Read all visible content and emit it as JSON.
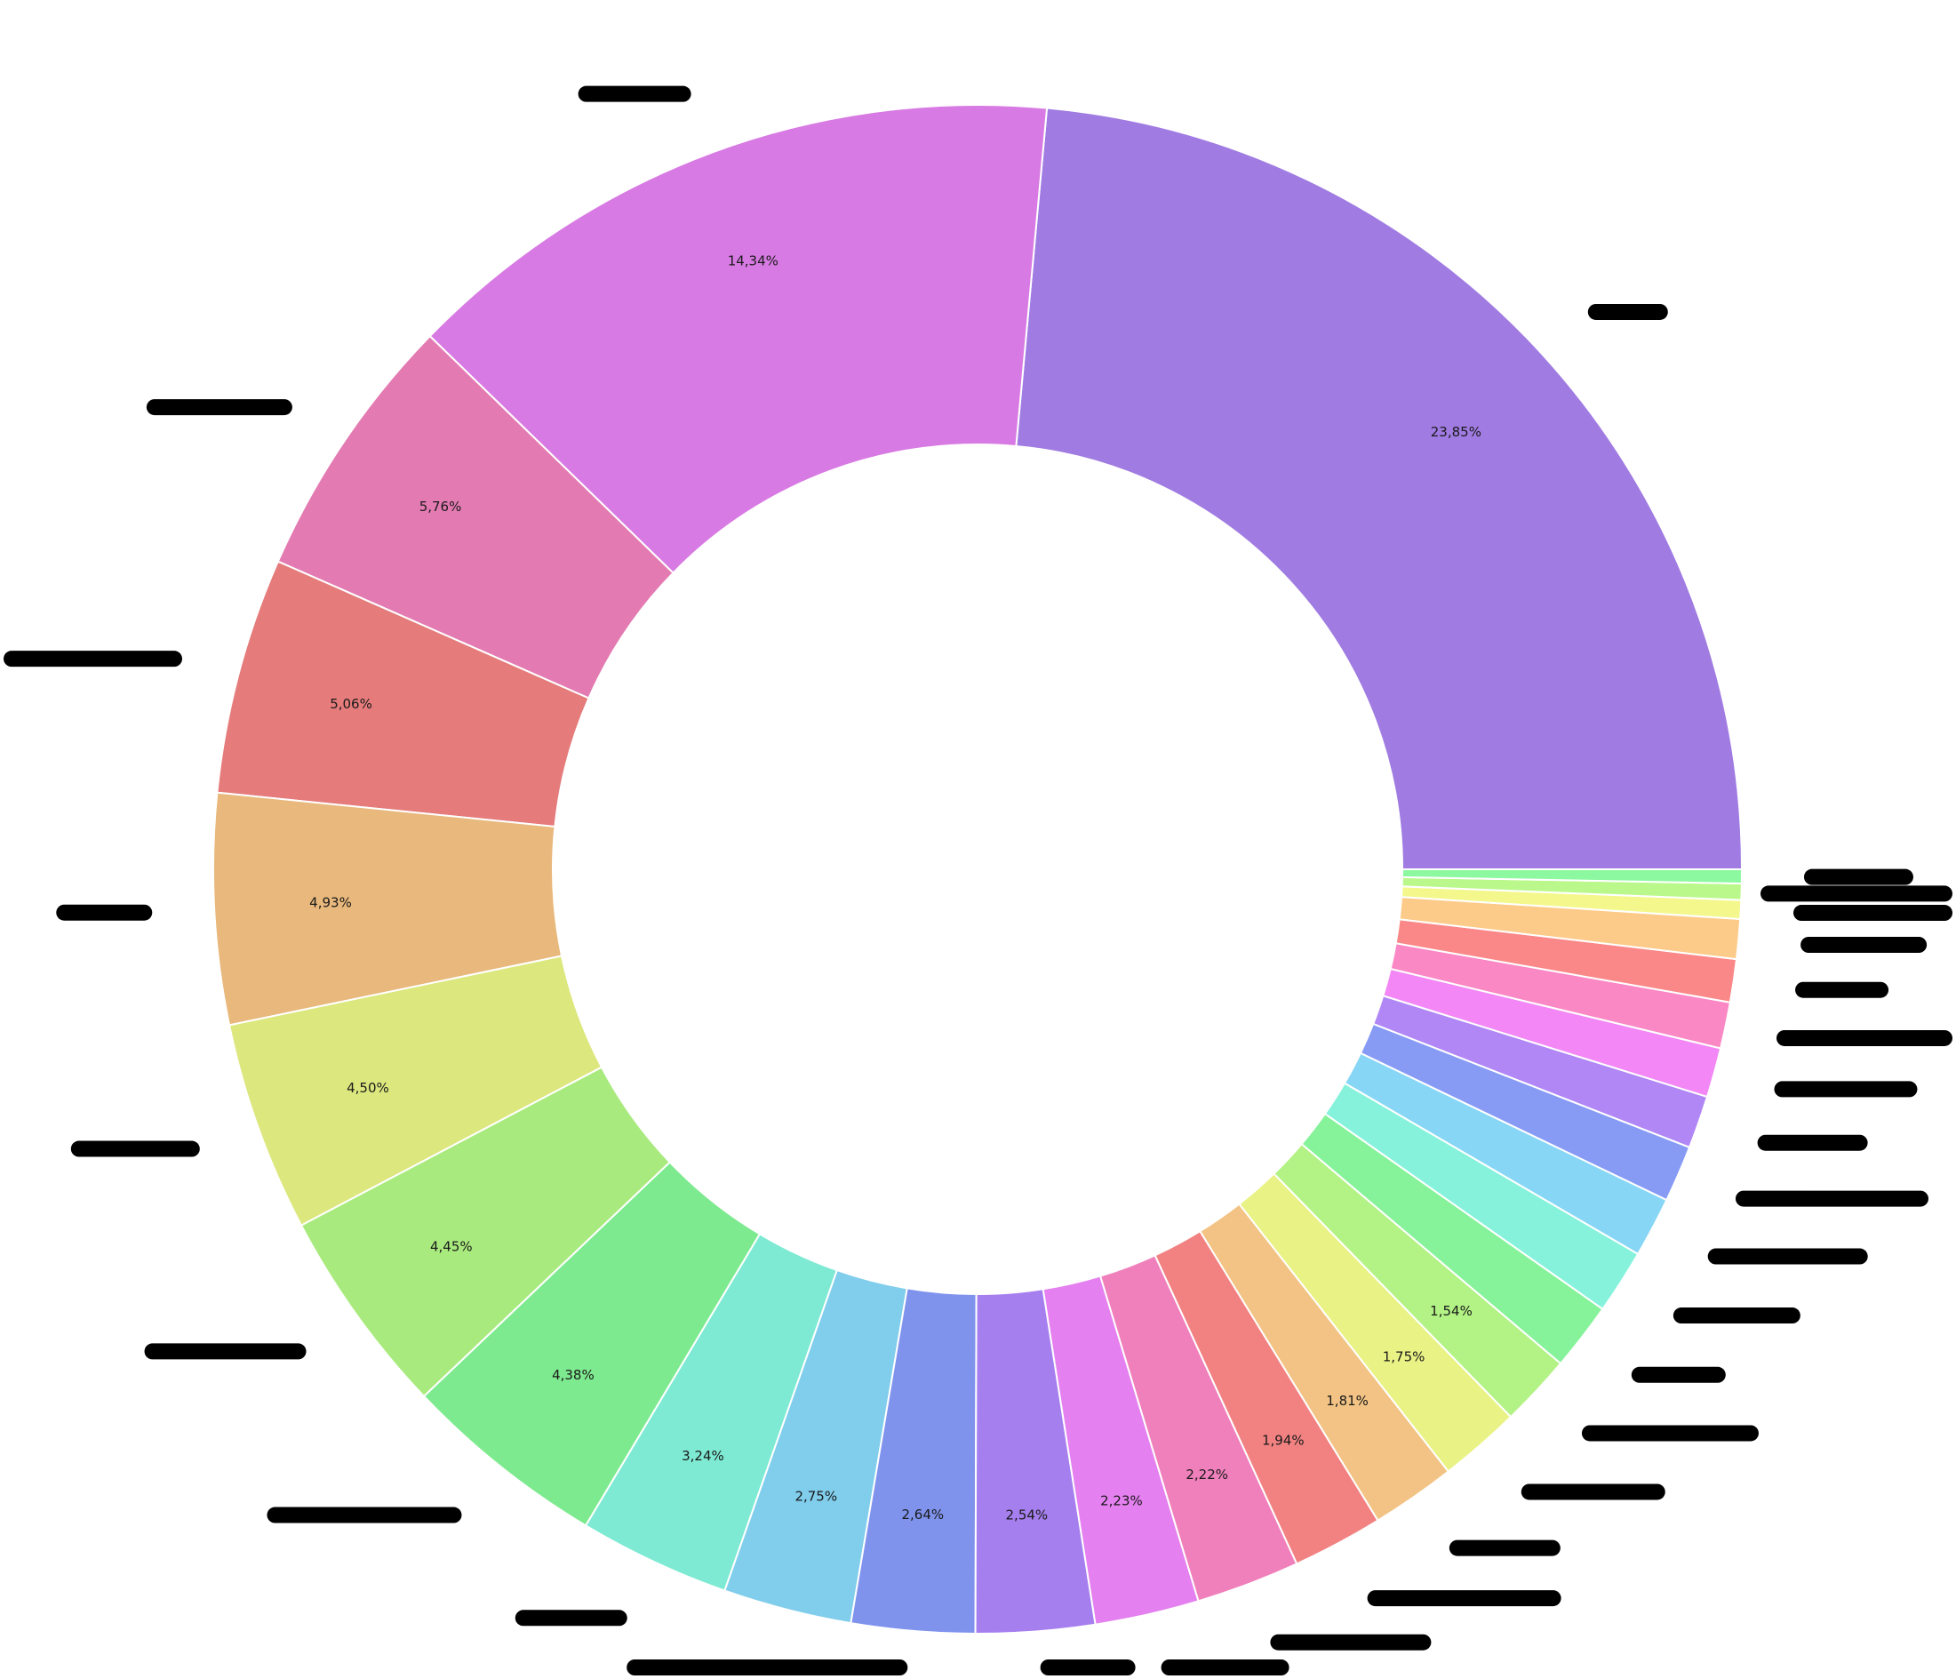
{
  "chart_data": {
    "type": "pie",
    "variant": "donut",
    "start_angle_deg": 0,
    "direction": "counterclockwise",
    "slices": [
      {
        "value": 23.85,
        "label": "23,85%",
        "color": "#a07be2"
      },
      {
        "value": 14.34,
        "label": "14,34%",
        "color": "#d87ae3"
      },
      {
        "value": 5.76,
        "label": "5,76%",
        "color": "#e37bb2"
      },
      {
        "value": 5.06,
        "label": "5,06%",
        "color": "#e57b7b"
      },
      {
        "value": 4.93,
        "label": "4,93%",
        "color": "#e8b87c"
      },
      {
        "value": 4.5,
        "label": "4,50%",
        "color": "#dce77e"
      },
      {
        "value": 4.45,
        "label": "4,45%",
        "color": "#a9ea7e"
      },
      {
        "value": 4.38,
        "label": "4,38%",
        "color": "#7eea8f"
      },
      {
        "value": 3.24,
        "label": "3,24%",
        "color": "#7eead3"
      },
      {
        "value": 2.75,
        "label": "2,75%",
        "color": "#80cdec"
      },
      {
        "value": 2.64,
        "label": "2,64%",
        "color": "#7f93ed"
      },
      {
        "value": 2.54,
        "label": "2,54%",
        "color": "#a67fef"
      },
      {
        "value": 2.23,
        "label": "2,23%",
        "color": "#e480ef"
      },
      {
        "value": 2.22,
        "label": "2,22%",
        "color": "#f080bb"
      },
      {
        "value": 1.94,
        "label": "1,94%",
        "color": "#f28282"
      },
      {
        "value": 1.81,
        "label": "1,81%",
        "color": "#f2c384"
      },
      {
        "value": 1.75,
        "label": "1,75%",
        "color": "#e9f285"
      },
      {
        "value": 1.54,
        "label": "1,54%",
        "color": "#b3f285"
      },
      {
        "value": 1.45,
        "label": "",
        "color": "#86f29a"
      },
      {
        "value": 1.38,
        "label": "",
        "color": "#86f2dc"
      },
      {
        "value": 1.29,
        "label": "",
        "color": "#87d6f5"
      },
      {
        "value": 1.21,
        "label": "",
        "color": "#879bf5"
      },
      {
        "value": 1.13,
        "label": "",
        "color": "#b187f5"
      },
      {
        "value": 1.06,
        "label": "",
        "color": "#f287f5"
      },
      {
        "value": 0.99,
        "label": "",
        "color": "#fa88c5"
      },
      {
        "value": 0.92,
        "label": "",
        "color": "#fa8888"
      },
      {
        "value": 0.85,
        "label": "",
        "color": "#fccb8a"
      },
      {
        "value": 0.4,
        "label": "",
        "color": "#f4f88c"
      },
      {
        "value": 0.35,
        "label": "",
        "color": "#baf88c"
      },
      {
        "value": 0.3,
        "label": "",
        "color": "#8cf8a0"
      }
    ],
    "legend": "none",
    "outer_labels": "redacted"
  }
}
